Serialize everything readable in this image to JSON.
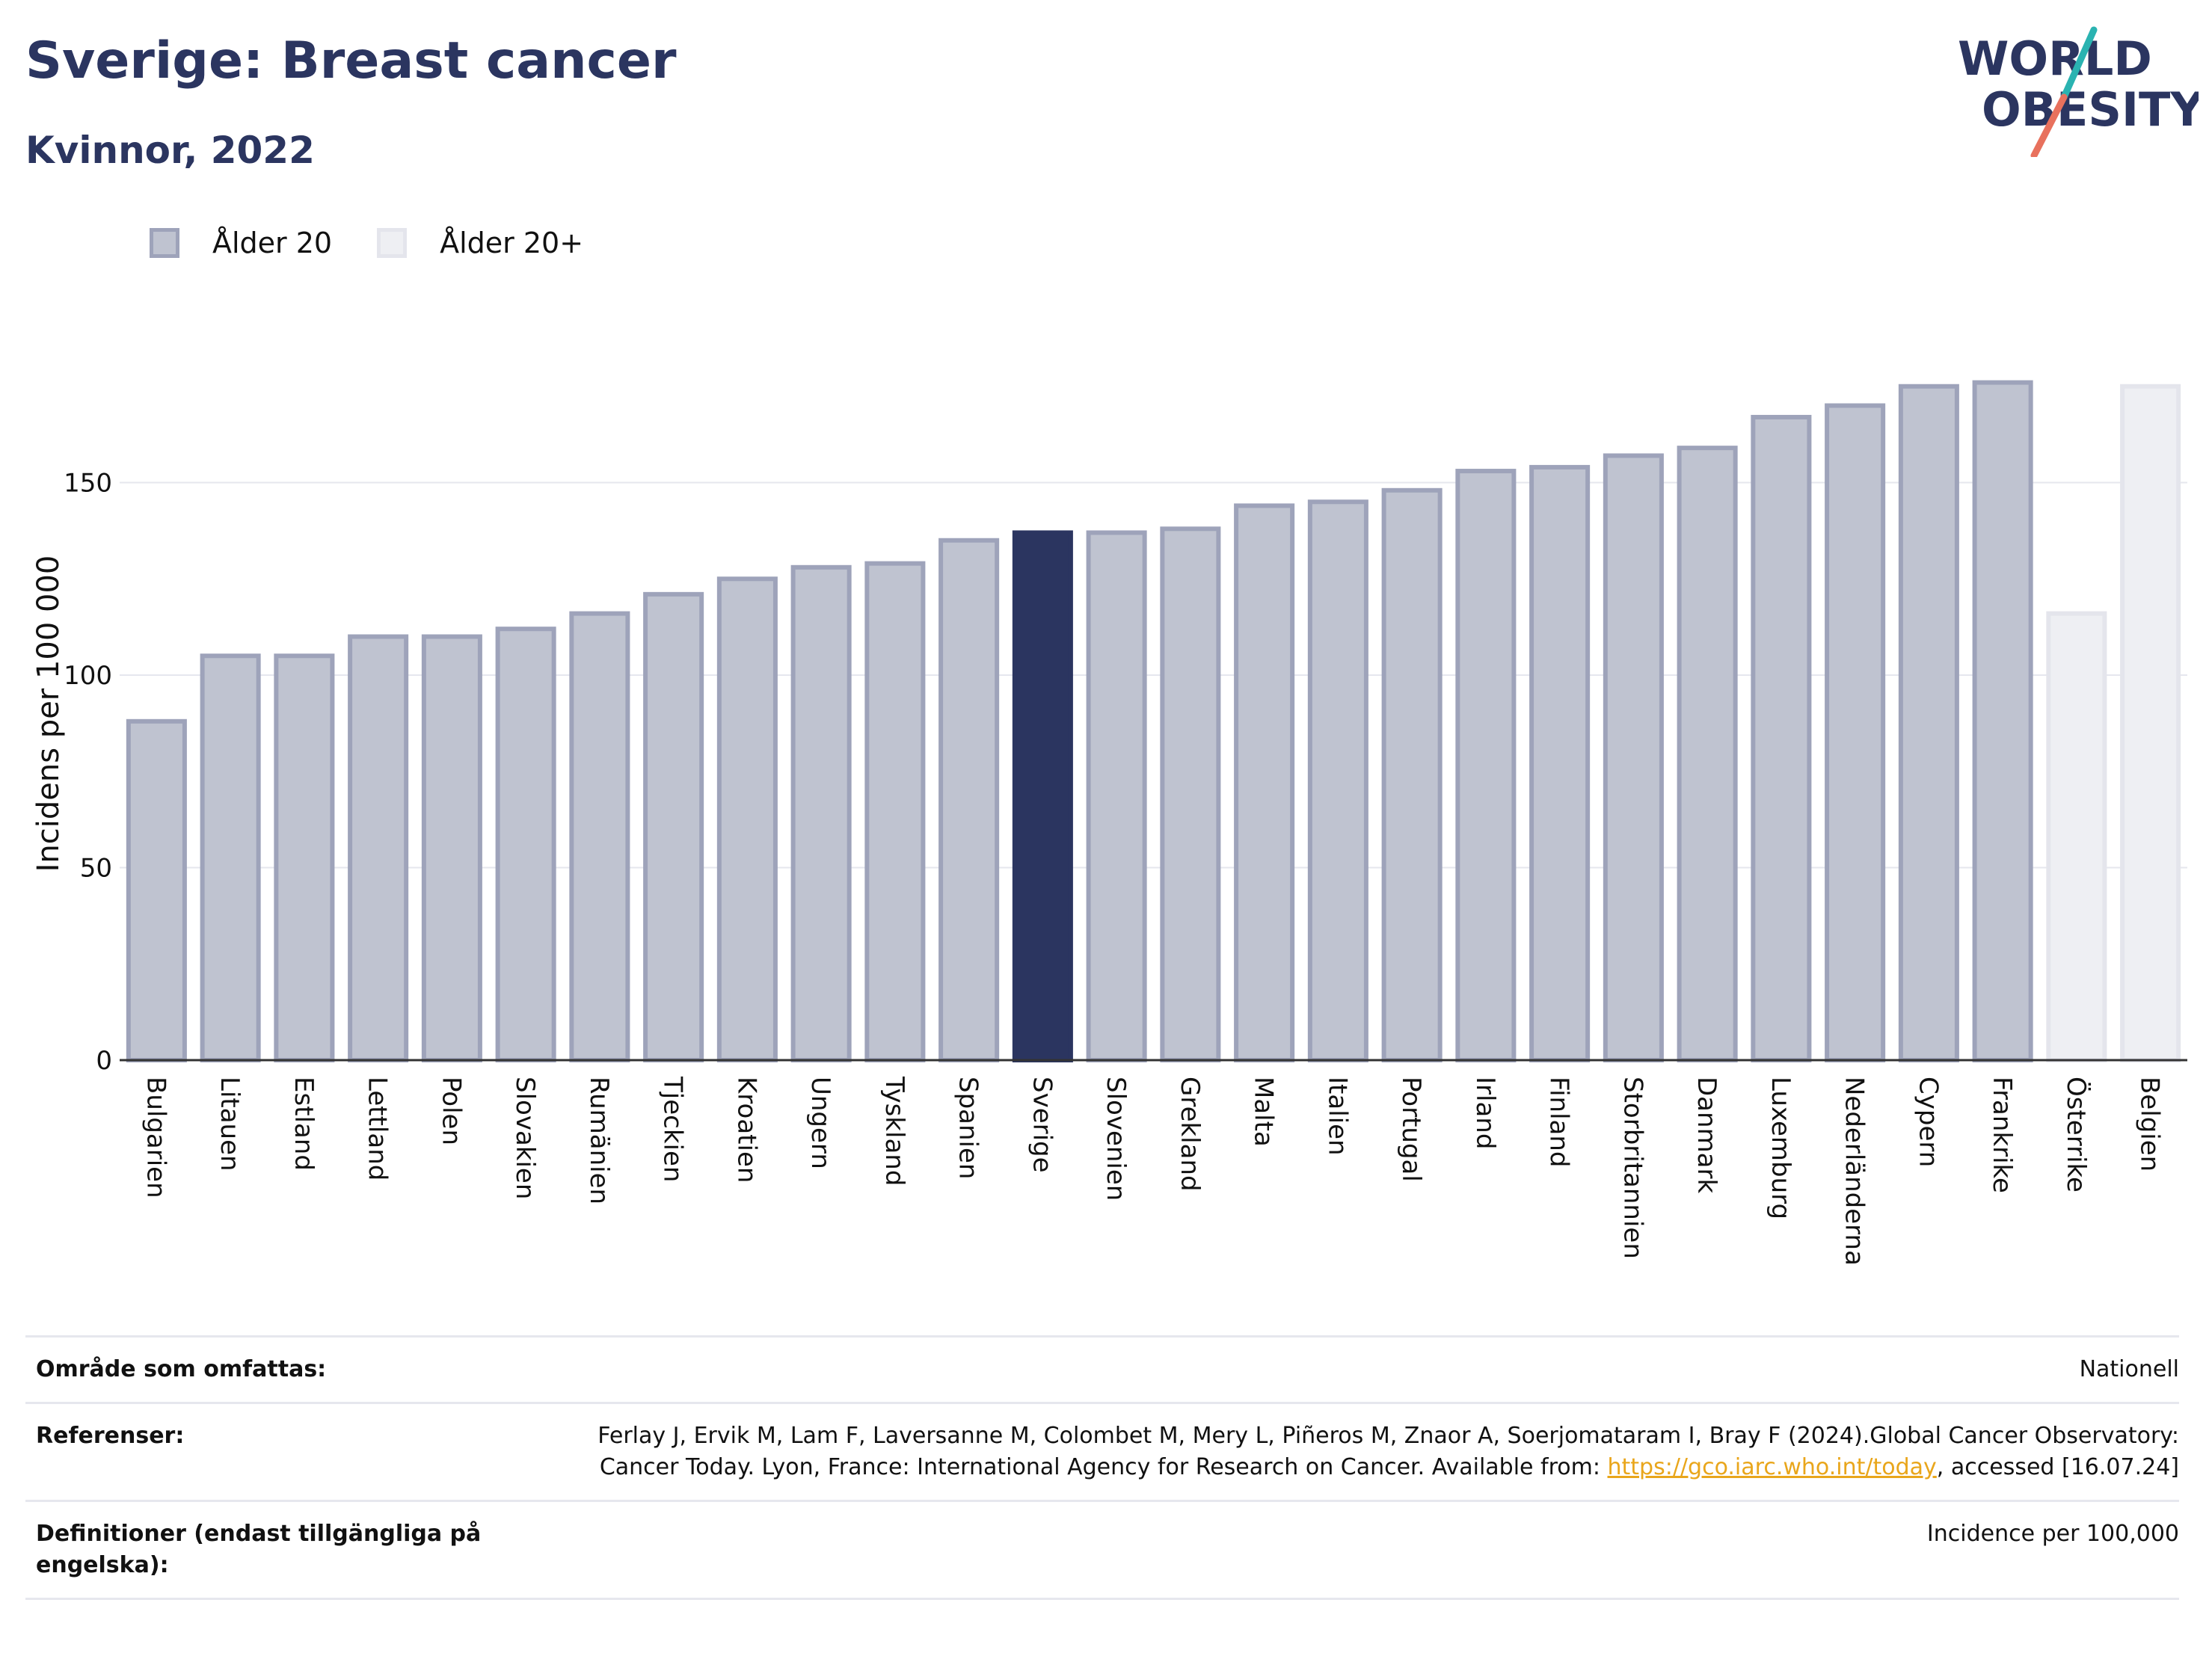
{
  "header": {
    "title": "Sverige: Breast cancer",
    "subtitle": "Kvinnor, 2022"
  },
  "logo": {
    "line1": "WORLD",
    "line2": "OBESITY",
    "colors": {
      "text": "#2b3560",
      "slash_teal": "#2ab3b1",
      "slash_coral": "#e8715d"
    }
  },
  "legend": {
    "items": [
      {
        "label": "Ålder 20",
        "color": "#bfc3d0"
      },
      {
        "label": "Ålder 20+",
        "color": "#eeeff3"
      }
    ]
  },
  "colors": {
    "bar_default": "#bfc3d0",
    "bar_default_border": "#9ea3ba",
    "bar_highlight": "#2b3560",
    "bar_light": "#eeeff3",
    "bar_light_border": "#e4e5ec",
    "grid": "#e6e7ee"
  },
  "chart_data": {
    "type": "bar",
    "title": "Sverige: Breast cancer",
    "subtitle": "Kvinnor, 2022",
    "xlabel": "",
    "ylabel": "Incidens per 100 000",
    "ylim": [
      0,
      185
    ],
    "yticks": [
      0,
      50,
      100,
      150
    ],
    "grid": true,
    "legend_position": "top-left",
    "categories": [
      "Bulgarien",
      "Litauen",
      "Estland",
      "Lettland",
      "Polen",
      "Slovakien",
      "Rumänien",
      "Tjeckien",
      "Kroatien",
      "Ungern",
      "Tyskland",
      "Spanien",
      "Sverige",
      "Slovenien",
      "Grekland",
      "Malta",
      "Italien",
      "Portugal",
      "Irland",
      "Finland",
      "Storbritannien",
      "Danmark",
      "Luxemburg",
      "Nederländerna",
      "Cypern",
      "Frankrike",
      "Österrike",
      "Belgien"
    ],
    "values": [
      88,
      105,
      105,
      110,
      110,
      112,
      116,
      121,
      125,
      128,
      129,
      135,
      137,
      137,
      138,
      144,
      145,
      148,
      153,
      154,
      157,
      159,
      167,
      170,
      175,
      176,
      116,
      175
    ],
    "series_of_bar": [
      "Ålder 20",
      "Ålder 20",
      "Ålder 20",
      "Ålder 20",
      "Ålder 20",
      "Ålder 20",
      "Ålder 20",
      "Ålder 20",
      "Ålder 20",
      "Ålder 20",
      "Ålder 20",
      "Ålder 20",
      "Ålder 20",
      "Ålder 20",
      "Ålder 20",
      "Ålder 20",
      "Ålder 20",
      "Ålder 20",
      "Ålder 20",
      "Ålder 20",
      "Ålder 20",
      "Ålder 20",
      "Ålder 20",
      "Ålder 20",
      "Ålder 20",
      "Ålder 20",
      "Ålder 20+",
      "Ålder 20+"
    ],
    "highlight": "Sverige"
  },
  "info": {
    "rows": [
      {
        "label": "Område som omfattas:",
        "value": "Nationell"
      },
      {
        "label": "Referenser:",
        "value_pre": "Ferlay J, Ervik M, Lam F, Laversanne M, Colombet M, Mery L, Piñeros M, Znaor A, Soerjomataram I, Bray F (2024).Global Cancer Observatory: Cancer Today. Lyon, France: International Agency for Research on Cancer. Available from: ",
        "link": "https://gco.iarc.who.int/today",
        "value_post": ", accessed [16.07.24]"
      },
      {
        "label": "Definitioner (endast tillgängliga på engelska):",
        "value": "Incidence per 100,000"
      }
    ]
  }
}
